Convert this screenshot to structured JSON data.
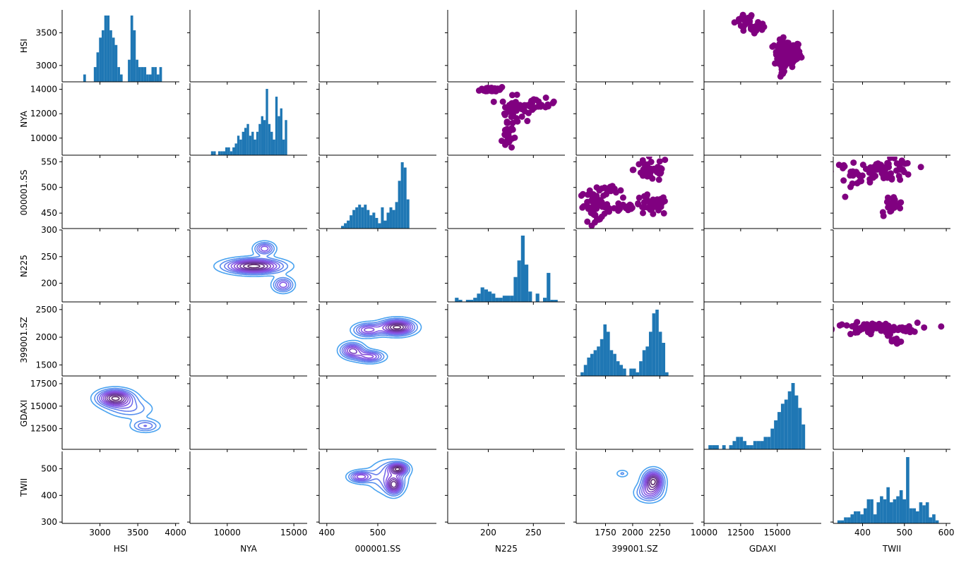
{
  "chart_data": {
    "type": "pairgrid",
    "variables": [
      "HSI",
      "NYA",
      "000001.SS",
      "N225",
      "399001.SZ",
      "GDAXI",
      "TWII"
    ],
    "colors": {
      "hist": "#1f77b4",
      "scatter": "#800080",
      "kde_outer": "#4aa3f0",
      "kde_mid": "#8a4fe6",
      "kde_inner": "#5a2a6a"
    },
    "axes": {
      "HSI": {
        "range": [
          2500,
          4050
        ],
        "ticks": [
          3000,
          3500,
          4000
        ],
        "y_range": [
          2750,
          3850
        ],
        "y_ticks": [
          3000,
          3500
        ]
      },
      "NYA": {
        "range": [
          7200,
          16000
        ],
        "ticks": [
          10000,
          15000
        ],
        "y_range": [
          8600,
          14500
        ],
        "y_ticks": [
          10000,
          12000,
          14000
        ]
      },
      "000001.SS": {
        "range": [
          385,
          615
        ],
        "ticks": [
          400,
          500
        ],
        "y_range": [
          420,
          560
        ],
        "y_ticks": [
          450,
          500,
          550
        ]
      },
      "N225": {
        "range": [
          155,
          285
        ],
        "ticks": [
          200,
          250
        ],
        "y_range": [
          165,
          300
        ],
        "y_ticks": [
          200,
          250,
          300
        ]
      },
      "399001.SZ": {
        "range": [
          1480,
          2560
        ],
        "ticks": [
          1750,
          2000,
          2250
        ],
        "y_range": [
          1300,
          2600
        ],
        "y_ticks": [
          1500,
          2000,
          2500
        ]
      },
      "GDAXI": {
        "range": [
          10000,
          18000
        ],
        "ticks": [
          10000,
          12500,
          15000
        ],
        "y_range": [
          10200,
          18200
        ],
        "y_ticks": [
          12500,
          15000,
          17500
        ]
      },
      "TWII": {
        "range": [
          330,
          610
        ],
        "ticks": [
          400,
          500,
          600
        ],
        "y_range": [
          295,
          565
        ],
        "y_ticks": [
          300,
          400,
          500
        ]
      }
    },
    "histograms": [
      {
        "variable": "HSI",
        "edges_range": [
          2780,
          3820
        ],
        "counts": [
          1,
          0,
          0,
          0,
          2,
          4,
          6,
          7,
          9,
          9,
          7,
          6,
          5,
          2,
          1,
          0,
          0,
          3,
          9,
          7,
          3,
          2,
          2,
          2,
          1,
          1,
          2,
          2,
          1,
          2
        ]
      },
      {
        "variable": "NYA",
        "edges_range": [
          8600,
          14500
        ],
        "counts": [
          0,
          1,
          1,
          0,
          1,
          1,
          1,
          2,
          2,
          1,
          2,
          3,
          5,
          4,
          6,
          7,
          8,
          5,
          6,
          4,
          6,
          8,
          10,
          9,
          17,
          8,
          6,
          4,
          15,
          10,
          12,
          4,
          9
        ]
      },
      {
        "variable": "000001.SS",
        "edges_range": [
          428,
          562
        ],
        "counts": [
          1,
          2,
          3,
          5,
          7,
          8,
          9,
          8,
          9,
          7,
          5,
          6,
          4,
          2,
          8,
          3,
          6,
          8,
          7,
          10,
          18,
          25,
          23,
          11
        ]
      },
      {
        "variable": "N225",
        "edges_range": [
          163,
          277
        ],
        "counts": [
          2,
          1,
          0,
          1,
          1,
          2,
          4,
          7,
          6,
          5,
          4,
          2,
          2,
          3,
          3,
          3,
          12,
          20,
          32,
          18,
          5,
          0,
          4,
          0,
          2,
          14,
          1,
          1
        ]
      },
      {
        "variable": "399001.SZ",
        "edges_range": [
          1520,
          2330
        ],
        "counts": [
          1,
          3,
          5,
          6,
          7,
          8,
          10,
          14,
          12,
          7,
          6,
          4,
          3,
          2,
          0,
          2,
          2,
          1,
          4,
          7,
          8,
          12,
          17,
          18,
          12,
          9,
          1
        ]
      },
      {
        "variable": "GDAXI",
        "edges_range": [
          10300,
          16900
        ],
        "counts": [
          1,
          1,
          1,
          0,
          1,
          0,
          1,
          2,
          3,
          3,
          2,
          1,
          1,
          2,
          2,
          2,
          3,
          3,
          5,
          7,
          9,
          11,
          12,
          14,
          16,
          13,
          10,
          6
        ]
      },
      {
        "variable": "TWII",
        "edges_range": [
          340,
          582
        ],
        "counts": [
          1,
          1,
          2,
          2,
          3,
          4,
          4,
          3,
          5,
          8,
          8,
          3,
          7,
          9,
          8,
          12,
          7,
          8,
          9,
          11,
          8,
          22,
          5,
          5,
          4,
          7,
          6,
          7,
          2,
          3,
          1
        ]
      }
    ],
    "scatters": [
      {
        "x": "GDAXI",
        "y": "HSI",
        "clusters": [
          {
            "cx": 12800,
            "cy": 3690,
            "sx": 350,
            "sy": 60,
            "n": 22
          },
          {
            "cx": 13800,
            "cy": 3560,
            "sx": 300,
            "sy": 50,
            "n": 16
          },
          {
            "cx": 15700,
            "cy": 3180,
            "sx": 450,
            "sy": 100,
            "n": 90
          },
          {
            "cx": 15200,
            "cy": 2950,
            "sx": 250,
            "sy": 70,
            "n": 10
          }
        ]
      },
      {
        "x": "N225",
        "y": "NYA",
        "clusters": [
          {
            "cx": 205,
            "cy": 14000,
            "sx": 7,
            "sy": 120,
            "n": 30
          },
          {
            "cx": 227,
            "cy": 12400,
            "sx": 6,
            "sy": 500,
            "n": 40
          },
          {
            "cx": 221,
            "cy": 10200,
            "sx": 3,
            "sy": 600,
            "n": 30
          },
          {
            "cx": 255,
            "cy": 12800,
            "sx": 10,
            "sy": 220,
            "n": 25
          }
        ]
      },
      {
        "x": "399001.SZ",
        "y": "000001.SS",
        "clusters": [
          {
            "cx": 1650,
            "cy": 465,
            "sx": 70,
            "sy": 15,
            "n": 50
          },
          {
            "cx": 1800,
            "cy": 493,
            "sx": 50,
            "sy": 5,
            "n": 15
          },
          {
            "cx": 1900,
            "cy": 460,
            "sx": 80,
            "sy": 6,
            "n": 15
          },
          {
            "cx": 2170,
            "cy": 535,
            "sx": 80,
            "sy": 12,
            "n": 45
          },
          {
            "cx": 2170,
            "cy": 465,
            "sx": 80,
            "sy": 10,
            "n": 40
          }
        ]
      },
      {
        "x": "TWII",
        "y": "000001.SS",
        "clusters": [
          {
            "cx": 455,
            "cy": 533,
            "sx": 35,
            "sy": 10,
            "n": 70
          },
          {
            "cx": 470,
            "cy": 465,
            "sx": 15,
            "sy": 10,
            "n": 20
          },
          {
            "cx": 370,
            "cy": 530,
            "sx": 20,
            "sy": 12,
            "n": 15
          }
        ]
      },
      {
        "x": "TWII",
        "y": "399001.SZ",
        "clusters": [
          {
            "cx": 430,
            "cy": 2150,
            "sx": 50,
            "sy": 55,
            "n": 90
          },
          {
            "cx": 478,
            "cy": 1920,
            "sx": 8,
            "sy": 40,
            "n": 8
          }
        ]
      }
    ],
    "kdes": [
      {
        "x": "NYA",
        "y": "N225",
        "modes": [
          {
            "cx": 12000,
            "cy": 232,
            "sx": 1400,
            "sy": 9,
            "w": 1.0
          },
          {
            "cx": 12800,
            "cy": 265,
            "sx": 500,
            "sy": 8,
            "w": 0.55
          },
          {
            "cx": 14200,
            "cy": 197,
            "sx": 500,
            "sy": 9,
            "w": 0.55
          }
        ]
      },
      {
        "x": "000001.SS",
        "y": "399001.SZ",
        "modes": [
          {
            "cx": 538,
            "cy": 2180,
            "sx": 22,
            "sy": 90,
            "w": 1.0
          },
          {
            "cx": 480,
            "cy": 2130,
            "sx": 18,
            "sy": 80,
            "w": 0.6
          },
          {
            "cx": 450,
            "cy": 1760,
            "sx": 15,
            "sy": 90,
            "w": 0.7
          },
          {
            "cx": 485,
            "cy": 1650,
            "sx": 18,
            "sy": 70,
            "w": 0.6
          }
        ]
      },
      {
        "x": "HSI",
        "y": "GDAXI",
        "modes": [
          {
            "cx": 3200,
            "cy": 15900,
            "sx": 150,
            "sy": 600,
            "w": 1.0
          },
          {
            "cx": 3600,
            "cy": 12800,
            "sx": 120,
            "sy": 450,
            "w": 0.4
          },
          {
            "cx": 3400,
            "cy": 14700,
            "sx": 200,
            "sy": 700,
            "w": 0.3
          }
        ]
      },
      {
        "x": "000001.SS",
        "y": "TWII",
        "modes": [
          {
            "cx": 466,
            "cy": 470,
            "sx": 15,
            "sy": 14,
            "w": 0.7
          },
          {
            "cx": 540,
            "cy": 500,
            "sx": 12,
            "sy": 14,
            "w": 0.9
          },
          {
            "cx": 532,
            "cy": 438,
            "sx": 10,
            "sy": 22,
            "w": 0.8
          },
          {
            "cx": 520,
            "cy": 470,
            "sx": 25,
            "sy": 40,
            "w": 0.4
          }
        ]
      },
      {
        "x": "399001.SZ",
        "y": "TWII",
        "modes": [
          {
            "cx": 2190,
            "cy": 455,
            "sx": 60,
            "sy": 25,
            "w": 1.0
          },
          {
            "cx": 2150,
            "cy": 410,
            "sx": 80,
            "sy": 22,
            "w": 0.5
          },
          {
            "cx": 1905,
            "cy": 482,
            "sx": 40,
            "sy": 10,
            "w": 0.22
          }
        ]
      }
    ]
  }
}
